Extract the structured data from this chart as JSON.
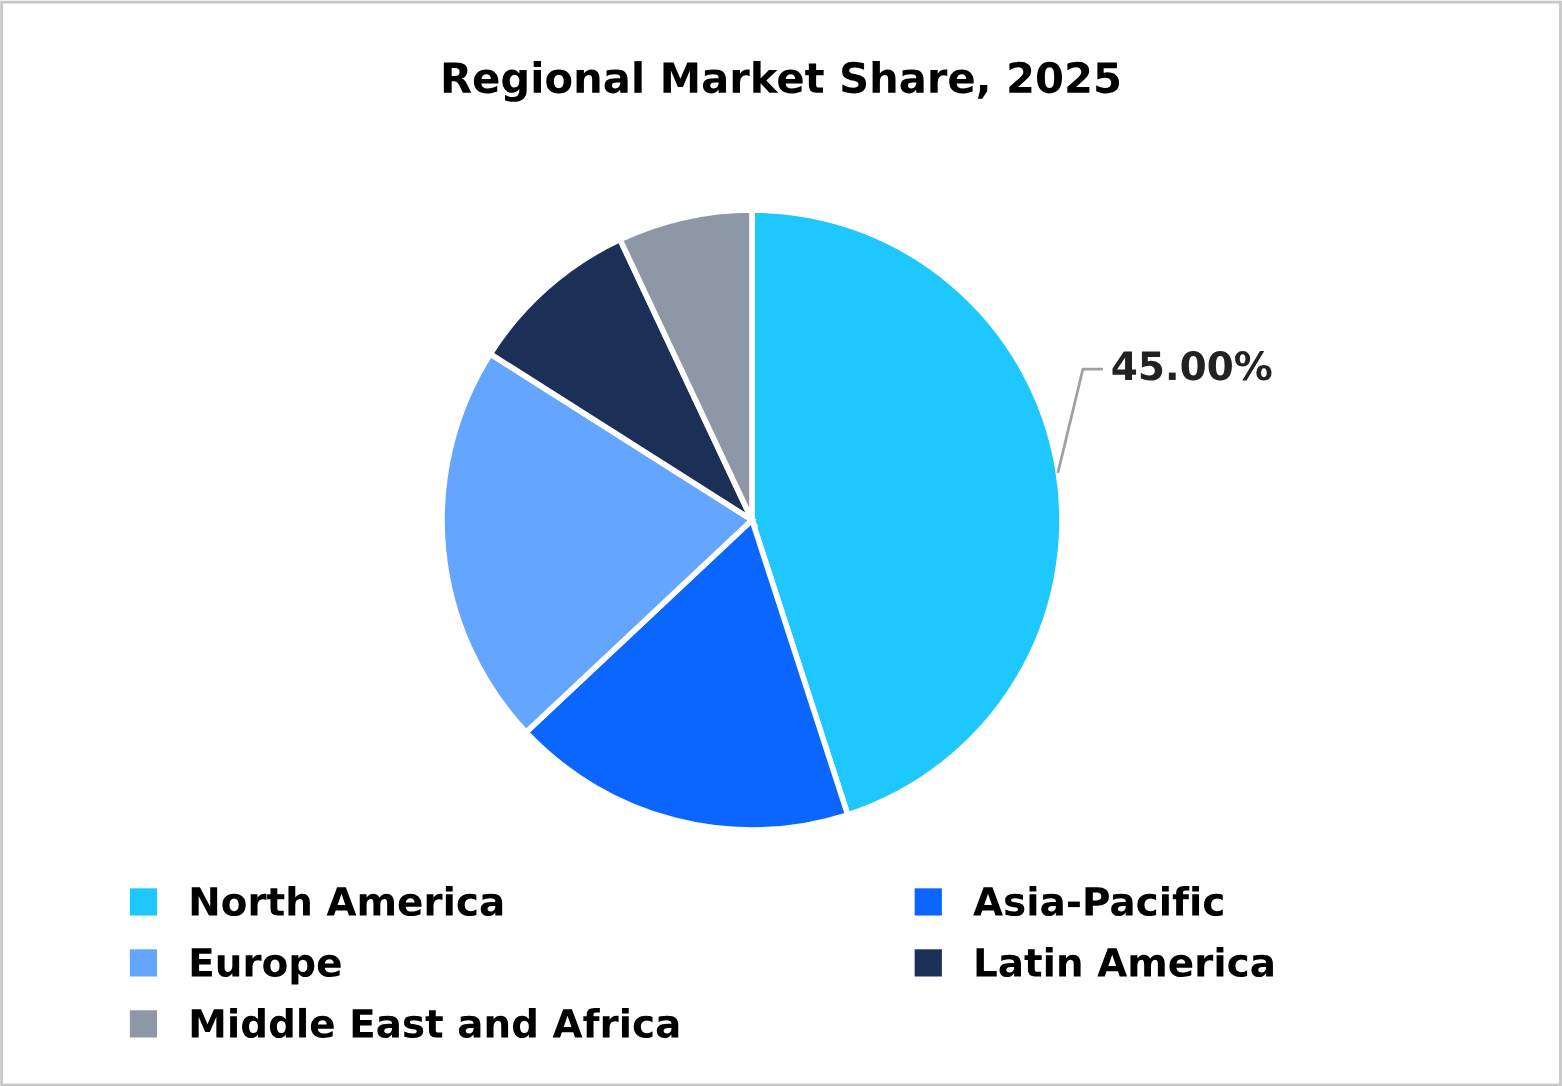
{
  "chart_data": {
    "type": "pie",
    "title": "Regional Market Share, 2025",
    "categories": [
      "North America",
      "Asia-Pacific",
      "Europe",
      "Latin America",
      "Middle East and Africa"
    ],
    "values": [
      45,
      18,
      21,
      9,
      7
    ],
    "colors": [
      "#1ec8ff",
      "#0a66ff",
      "#64a5ff",
      "#1b2f57",
      "#8e97a6"
    ],
    "value_labels": [
      "45.00%",
      null,
      null,
      null,
      null
    ],
    "legend": "bottom"
  }
}
